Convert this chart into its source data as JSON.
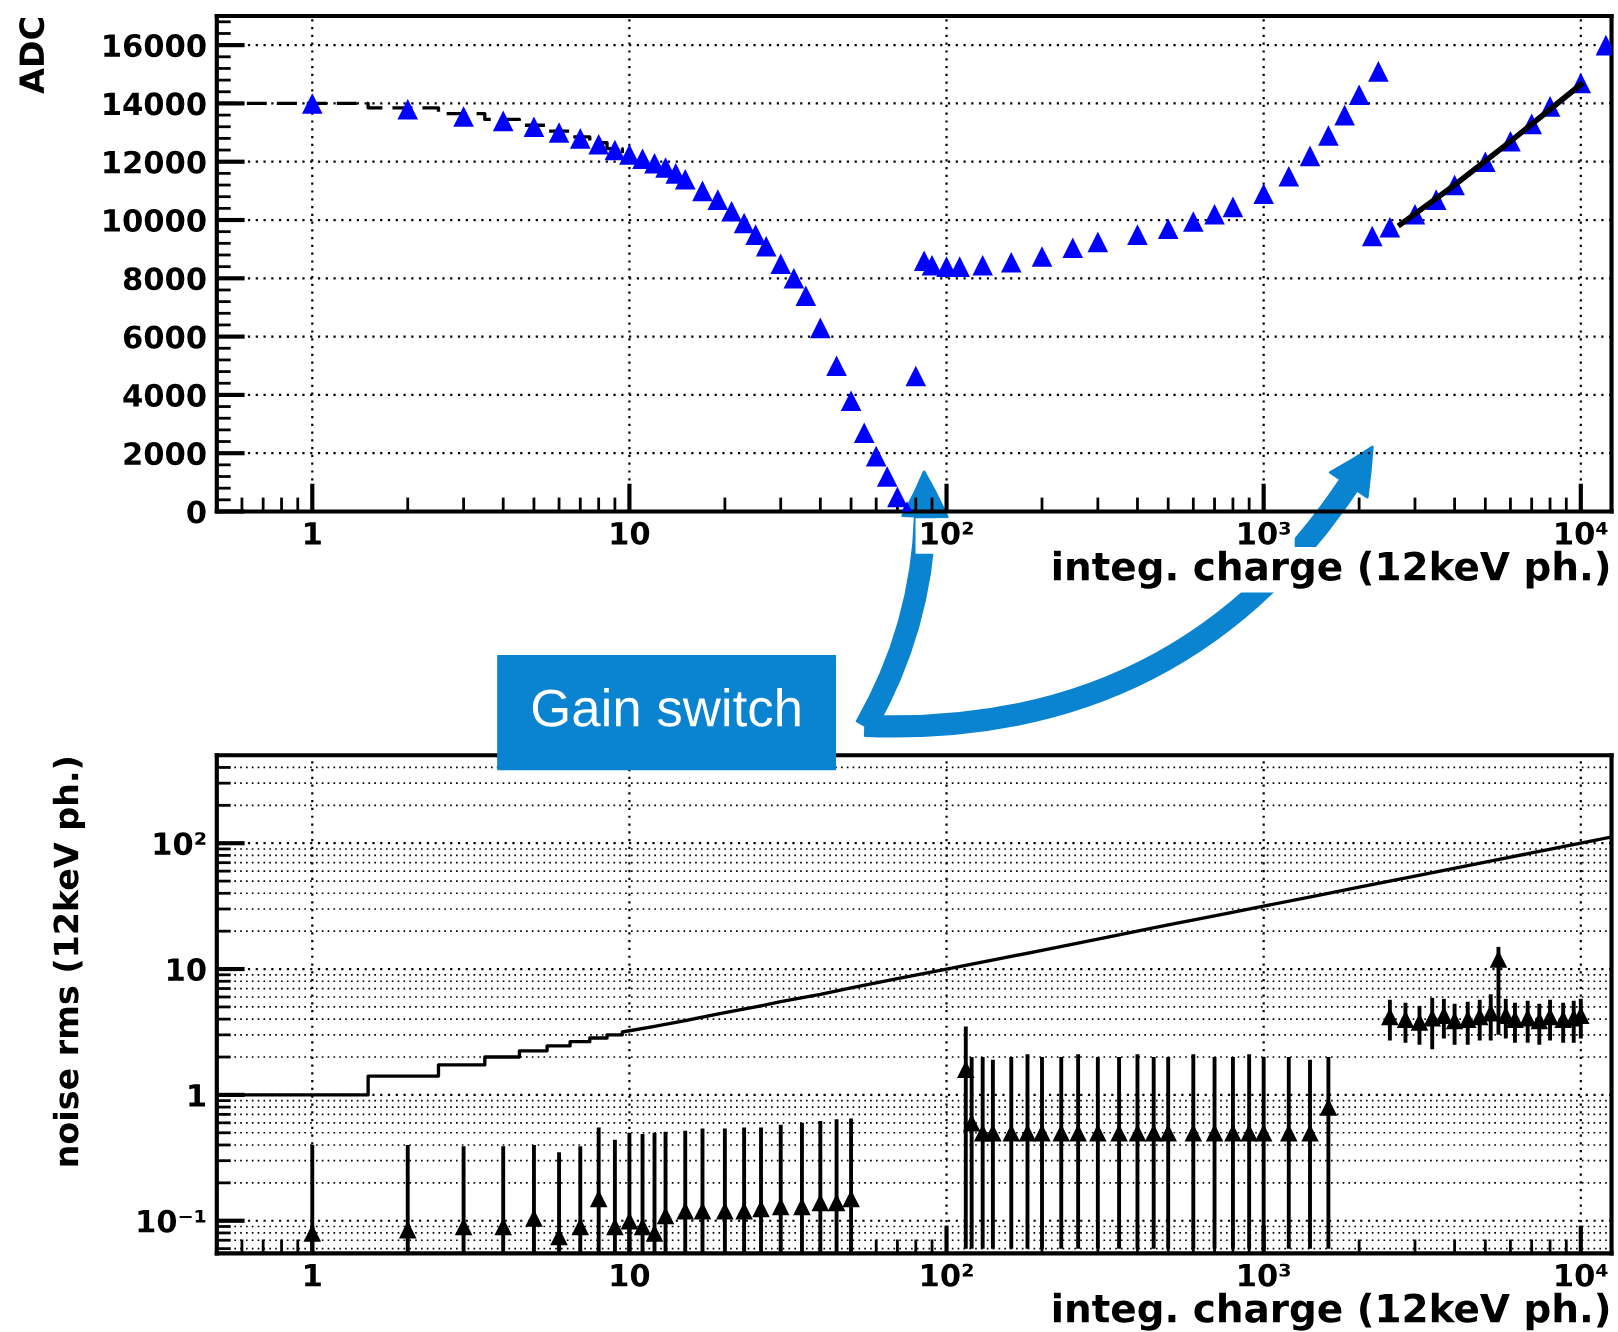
{
  "chart_data": [
    {
      "type": "scatter",
      "xlabel": "integ. charge (12keV ph.)",
      "ylabel": "ADC",
      "log": "x",
      "grid": true,
      "xlim": [
        0.5,
        12500
      ],
      "ylim": [
        0,
        17000
      ],
      "xticks": [
        1,
        10,
        {
          "value": 100,
          "label": "10²"
        },
        {
          "value": 1000,
          "label": "10³"
        },
        {
          "value": 10000,
          "label": "10⁴"
        }
      ],
      "yticks": [
        0,
        2000,
        4000,
        6000,
        8000,
        10000,
        12000,
        14000,
        16000
      ],
      "annotations": [
        "Gain switch"
      ],
      "series": [
        {
          "type": "step",
          "color": "#000000",
          "line_style": "dashed",
          "marker": "none",
          "x": [
            0.5,
            1.5,
            2.5,
            3.5,
            4.5,
            5.5,
            6.5,
            7.5,
            8.5,
            9.5
          ],
          "values": [
            14000,
            13850,
            13650,
            13450,
            13250,
            13050,
            12850,
            12650,
            12450,
            12300
          ]
        },
        {
          "color": "#0000ff",
          "marker": "triangle",
          "x": [
            1,
            2,
            3,
            4,
            5,
            6,
            7,
            8,
            9,
            10,
            11,
            12,
            13,
            14,
            15,
            17,
            19,
            21,
            23,
            25,
            27,
            30,
            33,
            36,
            40,
            45,
            50,
            55,
            60,
            65,
            70,
            75,
            80
          ],
          "values": [
            14000,
            13800,
            13550,
            13400,
            13200,
            13000,
            12800,
            12600,
            12400,
            12250,
            12100,
            11950,
            11800,
            11600,
            11400,
            11000,
            10700,
            10300,
            9900,
            9500,
            9100,
            8500,
            8000,
            7400,
            6300,
            5000,
            3800,
            2700,
            1900,
            1200,
            500,
            0,
            4650
          ]
        },
        {
          "color": "#0000ff",
          "marker": "triangle",
          "x": [
            85,
            90,
            100,
            110,
            130,
            160,
            200,
            250,
            300,
            400,
            500,
            600,
            700,
            800,
            1000,
            1200,
            1400,
            1600,
            1800,
            2000,
            2300
          ],
          "values": [
            8600,
            8450,
            8400,
            8400,
            8450,
            8550,
            8750,
            9050,
            9250,
            9500,
            9700,
            9950,
            10200,
            10450,
            10900,
            11500,
            12200,
            12900,
            13600,
            14300,
            15100
          ]
        },
        {
          "color": "#0000ff",
          "marker": "triangle",
          "x": [
            2200,
            2500,
            3000,
            3500,
            4000,
            5000,
            6000,
            7000,
            8000,
            10000,
            12000
          ],
          "values": [
            9450,
            9750,
            10200,
            10700,
            11200,
            12000,
            12700,
            13300,
            13900,
            14700,
            16000
          ]
        },
        {
          "type": "line",
          "color": "#000000",
          "line_style": "solid",
          "marker": "none",
          "x": [
            2700,
            4000,
            6000,
            10000
          ],
          "values": [
            9850,
            11200,
            12700,
            14650
          ]
        }
      ]
    },
    {
      "type": "scatter",
      "xlabel": "integ. charge (12keV ph.)",
      "ylabel": "noise rms (12keV ph.)",
      "log": "xy",
      "grid": true,
      "xlim": [
        0.5,
        12500
      ],
      "ylim": [
        0.055,
        500
      ],
      "xticks": [
        1,
        10,
        {
          "value": 100,
          "label": "10²"
        },
        {
          "value": 1000,
          "label": "10³"
        },
        {
          "value": 10000,
          "label": "10⁴"
        }
      ],
      "yticks": [
        {
          "value": 0.1,
          "label": "10⁻¹"
        },
        1,
        10,
        {
          "value": 100,
          "label": "10²"
        }
      ],
      "series": [
        {
          "type": "line",
          "color": "#000000",
          "line_style": "solid",
          "marker": "none",
          "x": [
            0.5,
            1.5,
            1.5,
            2.5,
            2.5,
            3.5,
            3.5,
            4.5,
            4.5,
            5.5,
            5.5,
            6.5,
            6.5,
            7.5,
            7.5,
            8.5,
            8.5,
            9.5,
            9.5,
            12,
            15,
            20,
            25,
            30,
            40,
            50,
            70,
            100,
            150,
            200,
            300,
            500,
            700,
            1000,
            1500,
            2000,
            3000,
            5000,
            7000,
            10000,
            12500
          ],
          "values": [
            1,
            1,
            1.41,
            1.41,
            1.73,
            1.73,
            2,
            2,
            2.24,
            2.24,
            2.45,
            2.45,
            2.65,
            2.65,
            2.83,
            2.83,
            3,
            3,
            3.16,
            3.5,
            3.9,
            4.5,
            5,
            5.5,
            6.3,
            7.1,
            8.4,
            10,
            12.2,
            14.1,
            17.3,
            22.4,
            26.5,
            31.6,
            38.7,
            44.7,
            54.8,
            70.7,
            83.7,
            100,
            112
          ]
        },
        {
          "color": "#000000",
          "marker": "triangle",
          "x": [
            1,
            2,
            3,
            4,
            5,
            6,
            7,
            8,
            9,
            10,
            11,
            12,
            13,
            15,
            17,
            20,
            23,
            26,
            30,
            35,
            40,
            45,
            50
          ],
          "values": [
            0.08,
            0.085,
            0.09,
            0.09,
            0.105,
            0.075,
            0.09,
            0.15,
            0.09,
            0.1,
            0.09,
            0.08,
            0.11,
            0.12,
            0.12,
            0.12,
            0.12,
            0.125,
            0.13,
            0.13,
            0.14,
            0.14,
            0.15
          ],
          "errors": [
            [
              0.056,
              0.4
            ],
            [
              0.056,
              0.4
            ],
            [
              0.056,
              0.39
            ],
            [
              0.056,
              0.39
            ],
            [
              0.056,
              0.4
            ],
            [
              0.056,
              0.35
            ],
            [
              0.056,
              0.39
            ],
            [
              0.056,
              0.55
            ],
            [
              0.056,
              0.44
            ],
            [
              0.056,
              0.5
            ],
            [
              0.056,
              0.49
            ],
            [
              0.056,
              0.5
            ],
            [
              0.056,
              0.51
            ],
            [
              0.056,
              0.52
            ],
            [
              0.056,
              0.54
            ],
            [
              0.056,
              0.54
            ],
            [
              0.056,
              0.55
            ],
            [
              0.056,
              0.55
            ],
            [
              0.056,
              0.58
            ],
            [
              0.056,
              0.6
            ],
            [
              0.056,
              0.62
            ],
            [
              0.056,
              0.64
            ],
            [
              0.056,
              0.65
            ]
          ]
        },
        {
          "color": "#000000",
          "marker": "triangle",
          "x": [
            115,
            120,
            130,
            140,
            160,
            180,
            200,
            230,
            260,
            300,
            350,
            400,
            450,
            500,
            600,
            700,
            800,
            900,
            1000,
            1200,
            1400,
            1600
          ],
          "values": [
            1.6,
            0.6,
            0.5,
            0.5,
            0.5,
            0.5,
            0.5,
            0.5,
            0.5,
            0.5,
            0.5,
            0.5,
            0.5,
            0.5,
            0.5,
            0.5,
            0.5,
            0.5,
            0.5,
            0.5,
            0.5,
            0.8
          ],
          "errors": [
            [
              0.06,
              3.5
            ],
            [
              0.06,
              2
            ],
            [
              0.06,
              2
            ],
            [
              0.06,
              1.9
            ],
            [
              0.06,
              2
            ],
            [
              0.06,
              2.1
            ],
            [
              0.06,
              2
            ],
            [
              0.06,
              2
            ],
            [
              0.06,
              2.1
            ],
            [
              0.06,
              2
            ],
            [
              0.06,
              2
            ],
            [
              0.06,
              2.1
            ],
            [
              0.06,
              2
            ],
            [
              0.06,
              2
            ],
            [
              0.06,
              2.1
            ],
            [
              0.06,
              2
            ],
            [
              0.06,
              2
            ],
            [
              0.06,
              2.1
            ],
            [
              0.06,
              2
            ],
            [
              0.06,
              2
            ],
            [
              0.06,
              1.9
            ],
            [
              0.06,
              2
            ]
          ]
        },
        {
          "color": "#000000",
          "marker": "triangle",
          "x": [
            2500,
            2800,
            3100,
            3400,
            3700,
            4000,
            4400,
            4800,
            5200,
            5500,
            5800,
            6200,
            6800,
            7400,
            8000,
            8800,
            9500,
            10000
          ],
          "values": [
            4.2,
            4.0,
            3.8,
            4.1,
            4.3,
            3.9,
            4.0,
            4.2,
            4.5,
            12,
            4.3,
            4.0,
            4.1,
            3.9,
            4.2,
            4.0,
            4.1,
            4.3
          ],
          "errors": [
            1.5,
            1.4,
            1.3,
            1.8,
            1.5,
            1.4,
            1.5,
            1.5,
            1.8,
            [
              3,
              15
            ],
            1.5,
            1.4,
            1.5,
            1.4,
            1.5,
            1.4,
            1.5,
            1.5
          ]
        }
      ]
    }
  ]
}
